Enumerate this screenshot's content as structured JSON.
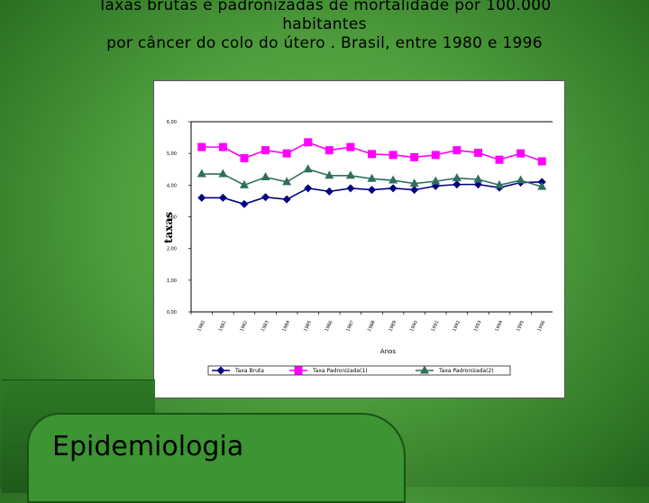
{
  "title": {
    "line1": "Taxas brutas e padronizadas de mortalidade por 100.000",
    "line2": "habitantes",
    "line3": "por câncer do colo do útero . Brasil, entre 1980 e 1996"
  },
  "footer_label": "Epidemiologia",
  "colors": {
    "s1": "#000080",
    "s2": "#ff00ff",
    "s3": "#2f6f5f"
  },
  "chart_data": {
    "type": "line",
    "title": "Taxas brutas e padronizadas de mortalidade por 100.000 habitantes por câncer do colo do útero . Brasil, entre 1980 e 1996",
    "xlabel": "Anos",
    "ylabel": "taxas",
    "ylim": [
      0,
      6
    ],
    "yticks": [
      "0,00",
      "1,00",
      "2,00",
      "3,00",
      "4,00",
      "5,00",
      "6,00"
    ],
    "categories": [
      "1980",
      "1981",
      "1982",
      "1983",
      "1984",
      "1985",
      "1986",
      "1987",
      "1988",
      "1989",
      "1990",
      "1991",
      "1992",
      "1993",
      "1994",
      "1995",
      "1996"
    ],
    "series": [
      {
        "name": "Taxa Bruta",
        "marker": "diamond",
        "values": [
          3.6,
          3.6,
          3.4,
          3.62,
          3.55,
          3.9,
          3.8,
          3.9,
          3.85,
          3.9,
          3.85,
          3.97,
          4.02,
          4.02,
          3.92,
          4.08,
          4.1
        ]
      },
      {
        "name": "Taxa Padronizada(1)",
        "marker": "square",
        "values": [
          5.2,
          5.2,
          4.85,
          5.1,
          5.0,
          5.35,
          5.1,
          5.2,
          4.98,
          4.95,
          4.88,
          4.95,
          5.1,
          5.02,
          4.8,
          5.0,
          4.75
        ]
      },
      {
        "name": "Taxa Padronizada(2)",
        "marker": "triangle",
        "values": [
          4.35,
          4.35,
          4.0,
          4.25,
          4.1,
          4.5,
          4.3,
          4.3,
          4.2,
          4.15,
          4.05,
          4.12,
          4.22,
          4.18,
          4.0,
          4.15,
          3.95
        ]
      }
    ],
    "grid": false,
    "legend": "bottom"
  }
}
